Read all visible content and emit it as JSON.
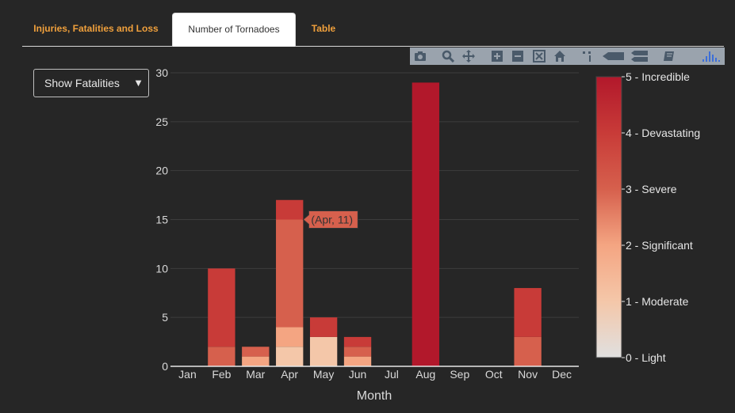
{
  "tabs": [
    {
      "label": "Injuries, Fatalities and Loss",
      "active": false
    },
    {
      "label": "Number of Tornadoes",
      "active": true
    },
    {
      "label": "Table",
      "active": false
    }
  ],
  "dropdown": {
    "selected": "Show Fatalities"
  },
  "modebar": {
    "icons": [
      "camera-icon",
      "zoom-icon",
      "pan-icon",
      "zoom-in-icon",
      "zoom-out-icon",
      "autoscale-icon",
      "reset-axes-icon",
      "spike-lines-icon",
      "hover-closest-icon",
      "hover-compare-icon",
      "toggle-legend-icon",
      "plotly-logo-icon"
    ]
  },
  "hover": {
    "text": "(Apr, 11)",
    "category": "Apr",
    "y": 15,
    "color": "#d6604d"
  },
  "colors": {
    "scale": [
      "#e0e0e0",
      "#f4c7a9",
      "#f4a582",
      "#d6604d",
      "#c83b38",
      "#b2182b"
    ]
  },
  "chart_data": {
    "type": "bar",
    "stacked": true,
    "categories": [
      "Jan",
      "Feb",
      "Mar",
      "Apr",
      "May",
      "Jun",
      "Jul",
      "Aug",
      "Sep",
      "Oct",
      "Nov",
      "Dec"
    ],
    "series": [
      {
        "values": [
          0,
          0,
          0,
          2,
          3,
          0,
          0,
          0,
          0,
          0,
          0,
          0
        ],
        "color": "#f4c7a9"
      },
      {
        "values": [
          0,
          0,
          1,
          2,
          0,
          1,
          0,
          0,
          0,
          0,
          0,
          0
        ],
        "color": "#f4a582"
      },
      {
        "values": [
          0,
          2,
          1,
          11,
          0,
          1,
          0,
          0,
          0,
          0,
          3,
          0
        ],
        "color": "#d6604d"
      },
      {
        "values": [
          0,
          8,
          0,
          2,
          2,
          1,
          0,
          0,
          0,
          0,
          5,
          0
        ],
        "color": "#c83b38"
      },
      {
        "values": [
          0,
          0,
          0,
          0,
          0,
          0,
          0,
          29,
          0,
          0,
          0,
          0
        ],
        "color": "#b2182b"
      }
    ],
    "xlabel": "Month",
    "ylabel": "",
    "ylim": [
      0,
      30
    ],
    "yticks": [
      0,
      5,
      10,
      15,
      20,
      25,
      30
    ],
    "grid": true,
    "colorbar": {
      "ticks": [
        "0 - Light",
        "1 - Moderate",
        "2 - Significant",
        "3 - Severe",
        "4 - Devastating",
        "5 - Incredible"
      ]
    }
  }
}
